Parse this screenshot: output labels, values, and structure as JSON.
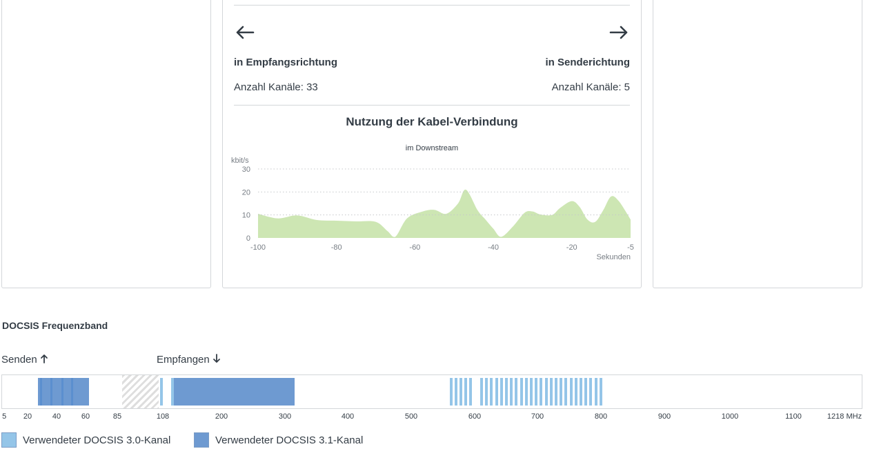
{
  "status": {
    "downstream_label": "in Empfangsrichtung",
    "downstream_count": "Anzahl Kanäle: 33",
    "upstream_label": "in Senderichtung",
    "upstream_count": "Anzahl Kanäle: 5",
    "arrow_left_icon": "arrow-left-icon",
    "arrow_right_icon": "arrow-right-icon"
  },
  "chart_data": {
    "type": "area",
    "title": "Nutzung der Kabel-Verbindung",
    "subtitle": "im Downstream",
    "ylabel": "kbit/s",
    "xlabel": "Sekunden",
    "xlim": [
      -100,
      -5
    ],
    "ylim": [
      0,
      30
    ],
    "yticks": [
      0,
      10,
      20,
      30
    ],
    "xticks": [
      -100,
      -80,
      -60,
      -40,
      -20,
      -5
    ],
    "grid": true,
    "color": "#cde6b3",
    "x": [
      -100,
      -95,
      -90,
      -85,
      -80,
      -75,
      -70,
      -67,
      -65,
      -62,
      -58,
      -55,
      -52,
      -49,
      -47,
      -44,
      -42,
      -40,
      -38,
      -35,
      -32,
      -30,
      -28,
      -25,
      -23,
      -20,
      -18,
      -16,
      -14,
      -12,
      -10,
      -8,
      -5
    ],
    "values": [
      10.5,
      8.5,
      9.8,
      7.8,
      7.5,
      7.2,
      7,
      3,
      0.5,
      8.5,
      11.5,
      12.2,
      10.5,
      15,
      21,
      12,
      8,
      4,
      0.5,
      5,
      11,
      11.5,
      10.2,
      10,
      13,
      16,
      13.5,
      8,
      7,
      12,
      18,
      16,
      8
    ]
  },
  "band": {
    "title": "DOCSIS Frequenzband",
    "send_label": "Senden",
    "receive_label": "Empfangen",
    "send_icon": "arrow-up-icon",
    "receive_icon": "arrow-down-icon",
    "axis_ticks": [
      "5",
      "20",
      "40",
      "60",
      "85",
      "108",
      "200",
      "300",
      "400",
      "500",
      "600",
      "700",
      "800",
      "900",
      "1000",
      "1100",
      "1218 MHz"
    ],
    "colors": {
      "docsis30": "#94c5e8",
      "docsis31": "#6e9ad1",
      "upstream_line": "#5b8fcf"
    }
  },
  "legend": {
    "docsis30": "Verwendeter DOCSIS 3.0-Kanal",
    "docsis31": "Verwendeter DOCSIS 3.1-Kanal"
  }
}
